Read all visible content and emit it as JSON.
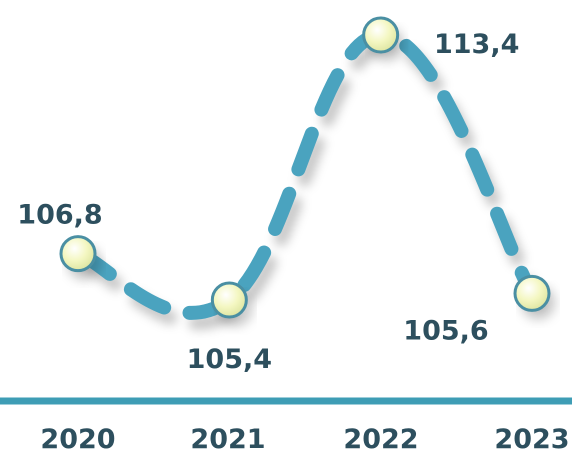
{
  "chart_data": {
    "type": "line",
    "categories": [
      "2020",
      "2021",
      "2022",
      "2023"
    ],
    "series": [
      {
        "values": [
          106.8,
          105.4,
          113.4,
          105.6
        ]
      }
    ],
    "data_labels": [
      "106,8",
      "105,4",
      "113,4",
      "105,6"
    ],
    "title": "",
    "xlabel": "",
    "ylabel": "",
    "grid": false,
    "legend": "none",
    "line_style": "dashed-smooth",
    "colors": {
      "line": "#4aa3bf",
      "marker_fill": "#f4f7c2",
      "marker_edge": "#4a8fa3",
      "axis": "#3e9db5",
      "text": "#2d4f5e"
    }
  }
}
